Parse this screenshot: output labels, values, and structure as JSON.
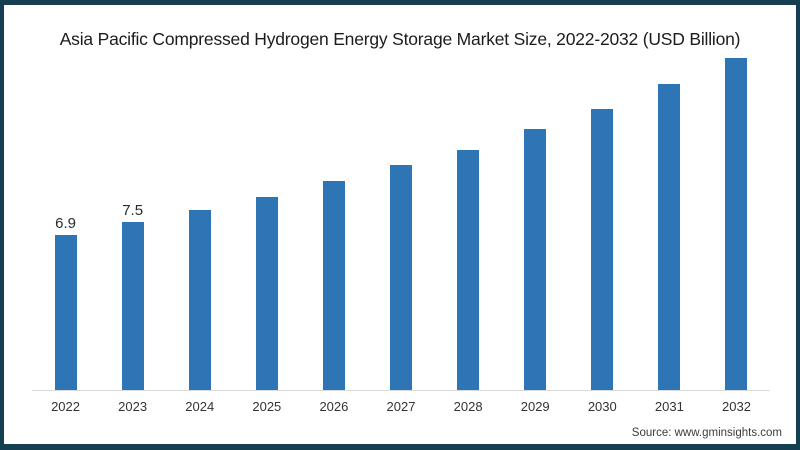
{
  "source": "Source: www.gminsights.com",
  "colors": {
    "bar": "#2E75B6",
    "frame": "#163F52",
    "axis_line": "#D9D9D9"
  },
  "chart_data": {
    "type": "bar",
    "title": "Asia Pacific Compressed Hydrogen Energy Storage Market Size, 2022-2032 (USD Billion)",
    "categories": [
      "2022",
      "2023",
      "2024",
      "2025",
      "2026",
      "2027",
      "2028",
      "2029",
      "2030",
      "2031",
      "2032"
    ],
    "values": [
      6.9,
      7.5,
      8.0,
      8.6,
      9.3,
      10.0,
      10.7,
      11.6,
      12.5,
      13.6,
      14.8
    ],
    "data_labels": [
      "6.9",
      "7.5",
      "",
      "",
      "",
      "",
      "",
      "",
      "",
      "",
      ""
    ],
    "xlabel": "",
    "ylabel": "",
    "ylim": [
      0,
      15.4
    ],
    "grid": false,
    "legend": "none",
    "bar_color": "#2E75B6"
  }
}
